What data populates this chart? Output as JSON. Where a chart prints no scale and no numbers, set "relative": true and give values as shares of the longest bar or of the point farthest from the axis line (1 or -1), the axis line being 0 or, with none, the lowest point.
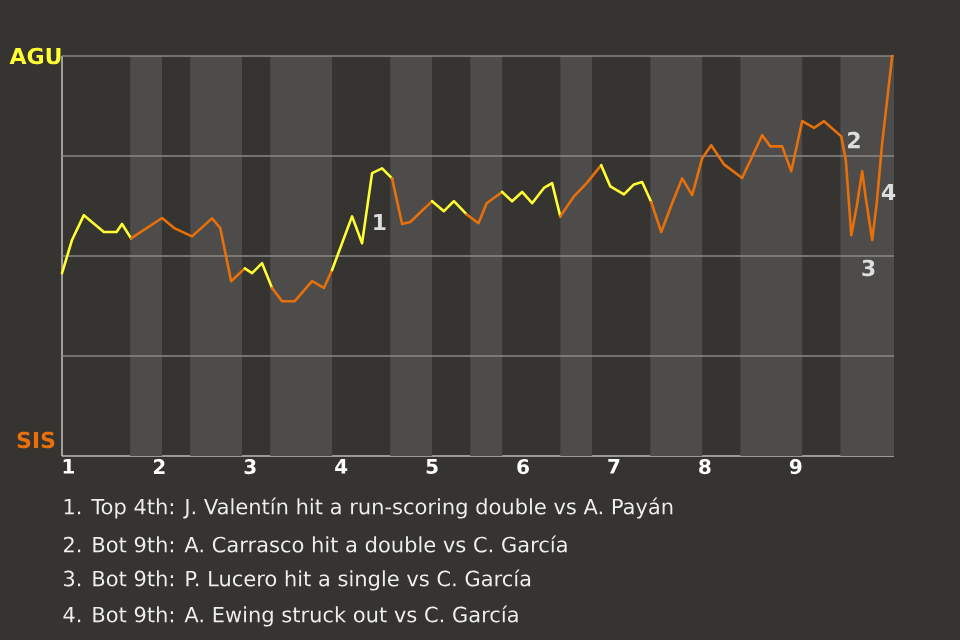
{
  "chart_data": {
    "type": "line",
    "relative": true,
    "xlim": [
      0.93,
      10.08
    ],
    "xticks": [
      1,
      2,
      3,
      4,
      5,
      6,
      7,
      8,
      9
    ],
    "series": [
      {
        "color": "#ffff33",
        "x": [
          0.93,
          1.04,
          1.17,
          1.39,
          1.53,
          1.59,
          1.69
        ],
        "values": [
          0.457,
          0.54,
          0.602,
          0.56,
          0.56,
          0.58,
          0.544
        ]
      },
      {
        "color": "#e8700a",
        "x": [
          1.69,
          2.03,
          2.17,
          2.36,
          2.58,
          2.67,
          2.79,
          2.94
        ],
        "values": [
          0.544,
          0.595,
          0.569,
          0.549,
          0.594,
          0.57,
          0.437,
          0.469
        ]
      },
      {
        "color": "#ffff33",
        "x": [
          2.94,
          3.02,
          3.13,
          3.24
        ],
        "values": [
          0.469,
          0.457,
          0.482,
          0.42
        ]
      },
      {
        "color": "#e8700a",
        "x": [
          3.24,
          3.35,
          3.49,
          3.68,
          3.81,
          3.9
        ],
        "values": [
          0.42,
          0.387,
          0.387,
          0.437,
          0.42,
          0.465
        ]
      },
      {
        "color": "#ffff33",
        "x": [
          3.9,
          4.12,
          4.23,
          4.34,
          4.45,
          4.56
        ],
        "values": [
          0.465,
          0.599,
          0.532,
          0.707,
          0.719,
          0.694
        ]
      },
      {
        "color": "#e8700a",
        "x": [
          4.56,
          4.67,
          4.76,
          5
        ],
        "values": [
          0.694,
          0.58,
          0.585,
          0.637
        ]
      },
      {
        "color": "#ffff33",
        "x": [
          5,
          5.13,
          5.24,
          5.38
        ],
        "values": [
          0.637,
          0.612,
          0.637,
          0.604
        ]
      },
      {
        "color": "#e8700a",
        "x": [
          5.38,
          5.51,
          5.6,
          5.77
        ],
        "values": [
          0.604,
          0.582,
          0.632,
          0.66
        ]
      },
      {
        "color": "#ffff33",
        "x": [
          5.77,
          5.88,
          5.99,
          6.1,
          6.23,
          6.32,
          6.41
        ],
        "values": [
          0.66,
          0.637,
          0.66,
          0.632,
          0.67,
          0.682,
          0.599
        ]
      },
      {
        "color": "#e8700a",
        "x": [
          6.41,
          6.56,
          6.7,
          6.86
        ],
        "values": [
          0.599,
          0.649,
          0.682,
          0.727
        ]
      },
      {
        "color": "#ffff33",
        "x": [
          6.86,
          6.96,
          7.11,
          7.22,
          7.31,
          7.41
        ],
        "values": [
          0.727,
          0.674,
          0.654,
          0.679,
          0.685,
          0.635
        ]
      },
      {
        "color": "#e8700a",
        "x": [
          7.41,
          7.52,
          7.64,
          7.75,
          7.86,
          7.97,
          8.07,
          8.21,
          8.41,
          8.63,
          8.72,
          8.85,
          8.95,
          9.07,
          9.2,
          9.31,
          9.5,
          9.55,
          9.61,
          9.67,
          9.73,
          9.77,
          9.84,
          9.89,
          9.95,
          10.06
        ],
        "values": [
          0.635,
          0.56,
          0.632,
          0.694,
          0.652,
          0.744,
          0.777,
          0.729,
          0.695,
          0.802,
          0.774,
          0.774,
          0.712,
          0.837,
          0.82,
          0.837,
          0.799,
          0.74,
          0.552,
          0.624,
          0.712,
          0.644,
          0.54,
          0.632,
          0.782,
          1
        ]
      }
    ],
    "grid": "y",
    "bands": [
      {
        "axis": "x",
        "from": 1.68,
        "to": 2.03,
        "color": "#4d4c4a"
      },
      {
        "axis": "x",
        "from": 2.34,
        "to": 2.91,
        "color": "#4d4c4a"
      },
      {
        "axis": "x",
        "from": 3.22,
        "to": 3.9,
        "color": "#4d4c4a"
      },
      {
        "axis": "x",
        "from": 4.54,
        "to": 5,
        "color": "#4d4c4a"
      },
      {
        "axis": "x",
        "from": 5.42,
        "to": 5.77,
        "color": "#4d4c4a"
      },
      {
        "axis": "x",
        "from": 6.41,
        "to": 6.76,
        "color": "#4d4c4a"
      },
      {
        "axis": "x",
        "from": 7.4,
        "to": 7.97,
        "color": "#4d4c4a"
      },
      {
        "axis": "x",
        "from": 8.39,
        "to": 9.07,
        "color": "#4d4c4a"
      },
      {
        "axis": "x",
        "from": 9.49,
        "to": 10.08,
        "color": "#4d4c4a"
      }
    ],
    "annotations": [
      "AGU",
      "SIS",
      "1",
      "2",
      "3",
      "4",
      "1. Top 4th: J. Valentín hit a run-scoring double vs A. Payán",
      "2. Bot 9th: A. Carrasco hit a double vs C. García",
      "3. Bot 9th: P. Lucero hit a single vs C. García",
      "4. Bot 9th: A. Ewing struck out vs C. García"
    ]
  }
}
